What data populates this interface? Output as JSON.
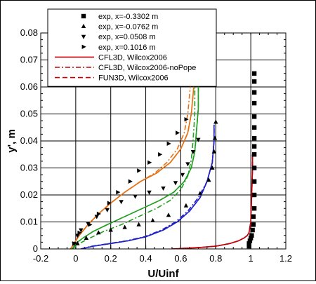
{
  "chart_data": {
    "type": "line",
    "title": "",
    "xlabel": "U/Uinf",
    "ylabel": "y', m",
    "xlim": [
      -0.2,
      1.2
    ],
    "ylim": [
      0,
      0.08
    ],
    "xticks": [
      "-0.2",
      "0",
      "0.2",
      "0.4",
      "0.6",
      "0.8",
      "1",
      "1.2"
    ],
    "yticks": [
      "0",
      "0.01",
      "0.02",
      "0.03",
      "0.04",
      "0.05",
      "0.06",
      "0.07",
      "0.08"
    ],
    "grid": true,
    "legend_position": "top-center",
    "legend": [
      {
        "label": "exp, x=-0.3302 m",
        "kind": "marker",
        "marker": "square"
      },
      {
        "label": "exp, x=-0.0762 m",
        "kind": "marker",
        "marker": "triangle-up"
      },
      {
        "label": "exp, x=0.0508 m",
        "kind": "marker",
        "marker": "triangle-down"
      },
      {
        "label": "exp, x=0.1016 m",
        "kind": "marker",
        "marker": "triangle-right"
      },
      {
        "label": "CFL3D, Wilcox2006",
        "kind": "line",
        "dash": "solid"
      },
      {
        "label": "CFL3D, Wilcox2006-noPope",
        "kind": "line",
        "dash": "dashdot"
      },
      {
        "label": "FUN3D, Wilcox2006",
        "kind": "line",
        "dash": "dashed"
      }
    ],
    "experimental": [
      {
        "name": "exp, x=-0.3302 m",
        "marker": "square",
        "color": "#000000",
        "points": [
          [
            0.99,
            0.001
          ],
          [
            0.99,
            0.002
          ],
          [
            0.995,
            0.003
          ],
          [
            1.0,
            0.004
          ],
          [
            1.005,
            0.005
          ],
          [
            1.01,
            0.007
          ],
          [
            1.015,
            0.009
          ],
          [
            1.015,
            0.012
          ],
          [
            1.02,
            0.015
          ],
          [
            1.02,
            0.02
          ],
          [
            1.02,
            0.025
          ],
          [
            1.02,
            0.03
          ],
          [
            1.02,
            0.035
          ],
          [
            1.02,
            0.038
          ],
          [
            1.02,
            0.041
          ],
          [
            1.02,
            0.045
          ],
          [
            1.02,
            0.049
          ],
          [
            1.02,
            0.054
          ],
          [
            1.02,
            0.058
          ],
          [
            1.02,
            0.062
          ],
          [
            1.02,
            0.065
          ]
        ]
      },
      {
        "name": "exp, x=-0.0762 m",
        "marker": "triangle-up",
        "color": "#000000",
        "points": [
          [
            0.01,
            0.002
          ],
          [
            0.06,
            0.004
          ],
          [
            0.13,
            0.006
          ],
          [
            0.2,
            0.007
          ],
          [
            0.28,
            0.008
          ],
          [
            0.36,
            0.009
          ],
          [
            0.44,
            0.0105
          ],
          [
            0.53,
            0.0125
          ],
          [
            0.63,
            0.016
          ],
          [
            0.71,
            0.0205
          ],
          [
            0.76,
            0.0255
          ],
          [
            0.78,
            0.03
          ],
          [
            0.79,
            0.036
          ],
          [
            0.795,
            0.041
          ],
          [
            0.8,
            0.047
          ]
        ]
      },
      {
        "name": "exp, x=0.0508 m",
        "marker": "triangle-down",
        "color": "#000000",
        "points": [
          [
            -0.01,
            0.002
          ],
          [
            0.01,
            0.005
          ],
          [
            0.03,
            0.007
          ],
          [
            0.07,
            0.0095
          ],
          [
            0.12,
            0.012
          ],
          [
            0.18,
            0.0145
          ],
          [
            0.26,
            0.0175
          ],
          [
            0.34,
            0.0195
          ],
          [
            0.42,
            0.021
          ],
          [
            0.5,
            0.0225
          ],
          [
            0.57,
            0.0245
          ],
          [
            0.61,
            0.0275
          ],
          [
            0.64,
            0.0315
          ],
          [
            0.67,
            0.036
          ],
          [
            0.7,
            0.0405
          ]
        ]
      },
      {
        "name": "exp, x=0.1016 m",
        "marker": "triangle-right",
        "color": "#000000",
        "points": [
          [
            -0.01,
            0.002
          ],
          [
            0.02,
            0.006
          ],
          [
            0.08,
            0.009
          ],
          [
            0.13,
            0.013
          ],
          [
            0.19,
            0.017
          ],
          [
            0.24,
            0.021
          ],
          [
            0.31,
            0.025
          ],
          [
            0.36,
            0.029
          ],
          [
            0.42,
            0.032
          ],
          [
            0.48,
            0.035
          ],
          [
            0.53,
            0.039
          ],
          [
            0.58,
            0.043
          ],
          [
            0.63,
            0.048
          ]
        ]
      }
    ],
    "series": [
      {
        "name": "CFL3D, Wilcox2006",
        "station": "x=-0.3302 m",
        "color": "#c0000a",
        "dash": "solid",
        "x": [
          0.55,
          0.7,
          0.8,
          0.88,
          0.93,
          0.96,
          0.98,
          0.99,
          1.0,
          1.005,
          1.01,
          1.01
        ],
        "y": [
          0,
          0.0005,
          0.001,
          0.002,
          0.003,
          0.004,
          0.005,
          0.006,
          0.01,
          0.02,
          0.03,
          0.035
        ]
      },
      {
        "name": "CFL3D, Wilcox2006-noPope",
        "station": "x=-0.3302 m",
        "color": "#c0000a",
        "dash": "dashdot",
        "x": [
          0.55,
          0.7,
          0.8,
          0.88,
          0.93,
          0.96,
          0.98,
          0.99,
          1.0,
          1.005,
          1.01,
          1.01
        ],
        "y": [
          0,
          0.0005,
          0.001,
          0.002,
          0.003,
          0.004,
          0.005,
          0.006,
          0.01,
          0.02,
          0.03,
          0.035
        ]
      },
      {
        "name": "FUN3D, Wilcox2006",
        "station": "x=-0.3302 m",
        "color": "#c0000a",
        "dash": "dashed",
        "x": [
          0.55,
          0.7,
          0.8,
          0.88,
          0.93,
          0.96,
          0.98,
          0.99,
          1.0,
          1.005,
          1.01,
          1.01
        ],
        "y": [
          0,
          0.0005,
          0.001,
          0.002,
          0.003,
          0.004,
          0.005,
          0.006,
          0.01,
          0.02,
          0.03,
          0.035
        ]
      },
      {
        "name": "CFL3D, Wilcox2006",
        "station": "x=-0.0762 m",
        "color": "#2020c8",
        "dash": "solid",
        "x": [
          0.03,
          0.1,
          0.2,
          0.3,
          0.4,
          0.5,
          0.58,
          0.65,
          0.71,
          0.75,
          0.78,
          0.79,
          0.79,
          0.79
        ],
        "y": [
          0,
          0.001,
          0.002,
          0.003,
          0.0045,
          0.007,
          0.01,
          0.014,
          0.019,
          0.025,
          0.032,
          0.04,
          0.045,
          0.046
        ]
      },
      {
        "name": "CFL3D, Wilcox2006-noPope",
        "station": "x=-0.0762 m",
        "color": "#2020c8",
        "dash": "dashdot",
        "x": [
          0.03,
          0.09,
          0.19,
          0.29,
          0.39,
          0.49,
          0.57,
          0.64,
          0.7,
          0.75,
          0.78,
          0.79,
          0.79,
          0.79
        ],
        "y": [
          0,
          0.001,
          0.002,
          0.003,
          0.0045,
          0.007,
          0.01,
          0.014,
          0.019,
          0.025,
          0.032,
          0.04,
          0.045,
          0.046
        ]
      },
      {
        "name": "FUN3D, Wilcox2006",
        "station": "x=-0.0762 m",
        "color": "#2020c8",
        "dash": "dashed",
        "x": [
          0.03,
          0.1,
          0.2,
          0.3,
          0.4,
          0.5,
          0.58,
          0.65,
          0.71,
          0.75,
          0.78,
          0.79,
          0.79,
          0.79
        ],
        "y": [
          0,
          0.001,
          0.002,
          0.003,
          0.0045,
          0.007,
          0.01,
          0.014,
          0.019,
          0.025,
          0.032,
          0.04,
          0.045,
          0.046
        ]
      },
      {
        "name": "CFL3D, Wilcox2006",
        "station": "x=0.0508 m",
        "color": "#20a020",
        "dash": "solid",
        "x": [
          -0.02,
          0.0,
          0.04,
          0.1,
          0.18,
          0.28,
          0.38,
          0.48,
          0.56,
          0.62,
          0.66,
          0.68,
          0.69,
          0.7,
          0.7,
          0.7
        ],
        "y": [
          0,
          0.002,
          0.004,
          0.0065,
          0.009,
          0.012,
          0.015,
          0.018,
          0.021,
          0.025,
          0.03,
          0.036,
          0.044,
          0.052,
          0.06,
          0.068
        ]
      },
      {
        "name": "CFL3D, Wilcox2006-noPope",
        "station": "x=0.0508 m",
        "color": "#20a020",
        "dash": "dashdot",
        "x": [
          -0.02,
          0.02,
          0.08,
          0.16,
          0.26,
          0.36,
          0.46,
          0.54,
          0.6,
          0.64,
          0.66,
          0.67,
          0.68,
          0.68,
          0.68
        ],
        "y": [
          0,
          0.002,
          0.004,
          0.0065,
          0.009,
          0.012,
          0.015,
          0.018,
          0.022,
          0.027,
          0.033,
          0.04,
          0.05,
          0.06,
          0.068
        ]
      },
      {
        "name": "FUN3D, Wilcox2006",
        "station": "x=0.0508 m",
        "color": "#20a020",
        "dash": "dashed",
        "x": [
          -0.02,
          0.0,
          0.04,
          0.1,
          0.18,
          0.28,
          0.38,
          0.48,
          0.56,
          0.62,
          0.66,
          0.68,
          0.69,
          0.7,
          0.7,
          0.7
        ],
        "y": [
          0,
          0.002,
          0.004,
          0.0065,
          0.009,
          0.012,
          0.015,
          0.018,
          0.021,
          0.025,
          0.03,
          0.036,
          0.044,
          0.052,
          0.06,
          0.068
        ]
      },
      {
        "name": "CFL3D, Wilcox2006",
        "station": "x=0.1016 m",
        "color": "#e87010",
        "dash": "solid",
        "x": [
          -0.03,
          -0.01,
          0.02,
          0.07,
          0.13,
          0.2,
          0.28,
          0.37,
          0.46,
          0.54,
          0.6,
          0.64,
          0.66,
          0.67,
          0.68,
          0.68
        ],
        "y": [
          0,
          0.002,
          0.005,
          0.009,
          0.013,
          0.017,
          0.021,
          0.025,
          0.028,
          0.032,
          0.037,
          0.043,
          0.05,
          0.057,
          0.064,
          0.068
        ]
      },
      {
        "name": "CFL3D, Wilcox2006-noPope",
        "station": "x=0.1016 m",
        "color": "#e87010",
        "dash": "dashdot",
        "x": [
          -0.03,
          -0.01,
          0.02,
          0.07,
          0.13,
          0.2,
          0.28,
          0.37,
          0.45,
          0.52,
          0.58,
          0.62,
          0.64,
          0.65,
          0.66,
          0.66
        ],
        "y": [
          0,
          0.002,
          0.005,
          0.009,
          0.013,
          0.017,
          0.021,
          0.025,
          0.028,
          0.032,
          0.037,
          0.043,
          0.05,
          0.057,
          0.064,
          0.068
        ]
      },
      {
        "name": "FUN3D, Wilcox2006",
        "station": "x=0.1016 m",
        "color": "#e87010",
        "dash": "dashed",
        "x": [
          -0.03,
          -0.01,
          0.02,
          0.07,
          0.13,
          0.2,
          0.28,
          0.37,
          0.46,
          0.54,
          0.6,
          0.64,
          0.66,
          0.67,
          0.68,
          0.68
        ],
        "y": [
          0,
          0.002,
          0.005,
          0.009,
          0.013,
          0.017,
          0.021,
          0.025,
          0.028,
          0.032,
          0.037,
          0.043,
          0.05,
          0.057,
          0.064,
          0.068
        ]
      }
    ]
  }
}
